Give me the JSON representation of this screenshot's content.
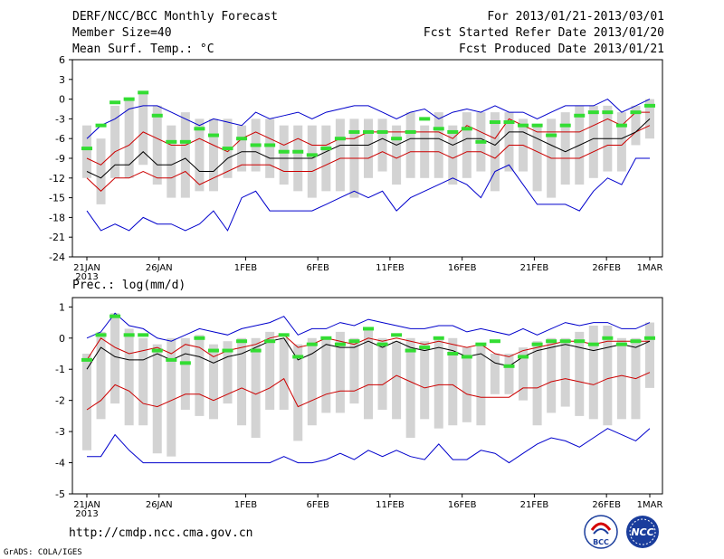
{
  "header": {
    "title": "DERF/NCC/BCC Monthly Forecast",
    "member_size": "Member Size=40",
    "variable": "Mean Surf. Temp.: °C",
    "for_period": "For 2013/01/21-2013/03/01",
    "fcst_started": "Fcst Started Refer Date 2013/01/20",
    "fcst_produced": "Fcst Produced Date 2013/01/21"
  },
  "footer": {
    "url": "http://cmdp.ncc.cma.gov.cn",
    "credit": "GrADS: COLA/IGES",
    "logo_left_text": "BCC",
    "logo_right_text": "NCC"
  },
  "colors": {
    "envelope": "#0000cc",
    "spread": "#cc0000",
    "mean": "#000000",
    "obs": "#33dd33",
    "box": "#d3d3d3"
  },
  "chart_data": [
    {
      "type": "box-ensemble",
      "title": "Mean Surf. Temp.: °C",
      "ylabel": "°C",
      "ylim": [
        -24,
        6
      ],
      "yticks": [
        6,
        3,
        0,
        -3,
        -6,
        -9,
        -12,
        -15,
        -18,
        -21,
        -24
      ],
      "xlim": [
        0,
        39
      ],
      "xticks": [
        {
          "day": 0,
          "label": "21JAN",
          "sub": "2013"
        },
        {
          "day": 5,
          "label": "26JAN"
        },
        {
          "day": 11,
          "label": "1FEB"
        },
        {
          "day": 16,
          "label": "6FEB"
        },
        {
          "day": 21,
          "label": "11FEB"
        },
        {
          "day": 26,
          "label": "16FEB"
        },
        {
          "day": 31,
          "label": "21FEB"
        },
        {
          "day": 36,
          "label": "26FEB"
        },
        {
          "day": 39,
          "label": "1MAR"
        }
      ],
      "series": {
        "max": [
          -6,
          -4,
          -3,
          -1.5,
          -1,
          -1,
          -2,
          -3,
          -4,
          -3,
          -3.5,
          -4,
          -2,
          -3,
          -2.5,
          -2,
          -3,
          -2,
          -1.5,
          -1,
          -1,
          -2,
          -3,
          -2,
          -1.5,
          -3,
          -2,
          -1.5,
          -2,
          -1,
          -2,
          -2,
          -3,
          -2,
          -1,
          -1,
          -1,
          0,
          -2,
          -1,
          0
        ],
        "upper": [
          -9,
          -10,
          -8,
          -7,
          -5,
          -6,
          -7,
          -7,
          -6,
          -7,
          -8,
          -6,
          -5,
          -6,
          -7,
          -6,
          -7,
          -7,
          -6,
          -6,
          -5,
          -5,
          -5,
          -5,
          -5,
          -5,
          -6,
          -4,
          -5,
          -6,
          -3,
          -4,
          -5,
          -5,
          -5,
          -5,
          -4,
          -3,
          -4,
          -2,
          -2
        ],
        "mean": [
          -11,
          -12,
          -10,
          -10,
          -8,
          -10,
          -10,
          -9,
          -11,
          -11,
          -9,
          -8,
          -8,
          -9,
          -9,
          -9,
          -9,
          -8,
          -7,
          -7,
          -7,
          -6,
          -7,
          -6,
          -6,
          -6,
          -7,
          -6,
          -6,
          -7,
          -5,
          -5,
          -6,
          -7,
          -8,
          -7,
          -6,
          -6,
          -6,
          -5,
          -3
        ],
        "lower": [
          -12,
          -14,
          -12,
          -12,
          -11,
          -12,
          -12,
          -11,
          -13,
          -12,
          -11,
          -10,
          -10,
          -10,
          -11,
          -11,
          -11,
          -10,
          -9,
          -9,
          -9,
          -8,
          -9,
          -8,
          -8,
          -8,
          -9,
          -8,
          -8,
          -9,
          -7,
          -7,
          -8,
          -9,
          -9,
          -9,
          -8,
          -7,
          -7,
          -5,
          -4
        ],
        "min": [
          -17,
          -20,
          -19,
          -20,
          -18,
          -19,
          -19,
          -20,
          -19,
          -17,
          -20,
          -15,
          -14,
          -17,
          -17,
          -17,
          -17,
          -16,
          -15,
          -14,
          -15,
          -14,
          -17,
          -15,
          -14,
          -13,
          -12,
          -13,
          -15,
          -11,
          -10,
          -13,
          -16,
          -16,
          -16,
          -17,
          -14,
          -12,
          -13,
          -9,
          -9
        ],
        "box_top": [
          -4,
          -6,
          -1,
          0,
          1,
          -1,
          -4,
          -2,
          -3,
          -3,
          -3,
          -4,
          -3,
          -3,
          -4,
          -4,
          -4,
          -4,
          -3,
          -3,
          -3,
          -3,
          -4,
          -2,
          -4,
          -2,
          -4,
          -2,
          -2,
          -2,
          -2,
          -3,
          -4,
          -3,
          -2,
          -1,
          -1,
          -1,
          -2,
          -1,
          0
        ],
        "box_bottom": [
          -12,
          -16,
          -12,
          -12,
          -10,
          -13,
          -15,
          -15,
          -14,
          -14,
          -12,
          -11,
          -11,
          -12,
          -13,
          -14,
          -15,
          -14,
          -14,
          -15,
          -12,
          -11,
          -13,
          -12,
          -12,
          -12,
          -13,
          -12,
          -11,
          -14,
          -11,
          -11,
          -14,
          -15,
          -13,
          -13,
          -12,
          -11,
          -11,
          -7,
          -6
        ],
        "obs": [
          -7.5,
          -4,
          -0.5,
          0,
          1,
          -2.5,
          -6.5,
          -6.5,
          -4.5,
          -5.5,
          -7.5,
          -6,
          -7,
          -7,
          -8,
          -8,
          -8.5,
          -7.5,
          -6,
          -5,
          -5,
          -5,
          -6,
          -5,
          -3,
          -4.5,
          -5,
          -4.5,
          -6.5,
          -3.5,
          -3.5,
          -4,
          -4,
          -5.5,
          -4,
          -2.5,
          -2,
          -2,
          -4,
          -2,
          -1
        ]
      }
    },
    {
      "type": "box-ensemble",
      "title": "Prec.: log(mm/d)",
      "ylabel": "log(mm/d)",
      "ylim": [
        -5,
        1.3
      ],
      "yticks": [
        1,
        0,
        -1,
        -2,
        -3,
        -4,
        -5
      ],
      "xlim": [
        0,
        39
      ],
      "xticks": [
        {
          "day": 0,
          "label": "21JAN",
          "sub": "2013"
        },
        {
          "day": 5,
          "label": "26JAN"
        },
        {
          "day": 11,
          "label": "1FEB"
        },
        {
          "day": 16,
          "label": "6FEB"
        },
        {
          "day": 21,
          "label": "11FEB"
        },
        {
          "day": 26,
          "label": "16FEB"
        },
        {
          "day": 31,
          "label": "21FEB"
        },
        {
          "day": 36,
          "label": "26FEB"
        },
        {
          "day": 39,
          "label": "1MAR"
        }
      ],
      "series": {
        "max": [
          0,
          0.2,
          0.8,
          0.4,
          0.3,
          0,
          -0.1,
          0.1,
          0.3,
          0.2,
          0.1,
          0.3,
          0.4,
          0.5,
          0.7,
          0.1,
          0.3,
          0.3,
          0.5,
          0.4,
          0.6,
          0.5,
          0.4,
          0.3,
          0.3,
          0.4,
          0.4,
          0.2,
          0.3,
          0.2,
          0.1,
          0.3,
          0.1,
          0.3,
          0.5,
          0.4,
          0.5,
          0.5,
          0.3,
          0.3,
          0.5
        ],
        "upper": [
          -0.7,
          0,
          -0.3,
          -0.5,
          -0.4,
          -0.3,
          -0.5,
          -0.2,
          -0.3,
          -0.6,
          -0.4,
          -0.3,
          -0.2,
          0,
          0.1,
          -0.3,
          -0.2,
          0,
          -0.1,
          -0.2,
          0,
          -0.1,
          0,
          -0.1,
          -0.2,
          -0.1,
          -0.2,
          -0.3,
          -0.2,
          -0.5,
          -0.6,
          -0.4,
          -0.3,
          -0.2,
          -0.1,
          -0.1,
          -0.2,
          -0.1,
          -0.1,
          -0.1,
          -0.1
        ],
        "mean": [
          -1,
          -0.3,
          -0.6,
          -0.7,
          -0.7,
          -0.5,
          -0.7,
          -0.5,
          -0.6,
          -0.8,
          -0.6,
          -0.5,
          -0.3,
          -0.1,
          0,
          -0.7,
          -0.5,
          -0.2,
          -0.3,
          -0.3,
          -0.1,
          -0.3,
          -0.1,
          -0.3,
          -0.4,
          -0.3,
          -0.4,
          -0.6,
          -0.5,
          -0.8,
          -0.9,
          -0.6,
          -0.4,
          -0.3,
          -0.2,
          -0.3,
          -0.4,
          -0.3,
          -0.2,
          -0.3,
          -0.1
        ],
        "lower": [
          -2.3,
          -2,
          -1.5,
          -1.7,
          -2.1,
          -2.2,
          -2,
          -1.8,
          -1.8,
          -2,
          -1.8,
          -1.6,
          -1.8,
          -1.6,
          -1.3,
          -2.2,
          -2,
          -1.8,
          -1.7,
          -1.7,
          -1.5,
          -1.5,
          -1.2,
          -1.4,
          -1.6,
          -1.5,
          -1.5,
          -1.8,
          -1.9,
          -1.9,
          -1.9,
          -1.6,
          -1.6,
          -1.4,
          -1.3,
          -1.4,
          -1.5,
          -1.3,
          -1.2,
          -1.3,
          -1.1
        ],
        "min": [
          -3.8,
          -3.8,
          -3.1,
          -3.6,
          -4,
          -4,
          -4,
          -4,
          -4,
          -4,
          -4,
          -4,
          -4,
          -4,
          -3.8,
          -4,
          -4,
          -3.9,
          -3.7,
          -3.9,
          -3.6,
          -3.8,
          -3.6,
          -3.8,
          -3.9,
          -3.4,
          -3.9,
          -3.9,
          -3.6,
          -3.7,
          -4,
          -3.7,
          -3.4,
          -3.2,
          -3.3,
          -3.5,
          -3.2,
          -2.9,
          -3.1,
          -3.3,
          -2.9
        ],
        "box_top": [
          -0.5,
          0.2,
          0.8,
          0.3,
          0,
          -0.2,
          0,
          0,
          0.1,
          -0.2,
          -0.1,
          0,
          0,
          0.2,
          0,
          -0.2,
          0,
          0,
          0.2,
          0,
          0.3,
          0,
          -0.1,
          0,
          -0.1,
          0,
          0,
          -0.3,
          -0.2,
          -0.5,
          -0.5,
          -0.3,
          -0.1,
          0,
          0,
          0.2,
          0.4,
          0.4,
          0,
          0,
          0.5
        ],
        "box_bottom": [
          -3.6,
          -2.6,
          -2.1,
          -2.8,
          -2.8,
          -3.7,
          -3.8,
          -2.3,
          -2.5,
          -2.6,
          -2.1,
          -2.8,
          -3.2,
          -2.3,
          -2.3,
          -3.3,
          -2.8,
          -2.4,
          -2.4,
          -2.1,
          -2.6,
          -2.3,
          -2.6,
          -3.2,
          -2.6,
          -2.9,
          -2.8,
          -2.7,
          -2.8,
          -1.8,
          -1.8,
          -2,
          -2.8,
          -2.4,
          -2.2,
          -2.5,
          -2.6,
          -2.8,
          -2.6,
          -2.6,
          -1.6
        ],
        "obs": [
          -0.7,
          0.1,
          0.7,
          0.1,
          0.1,
          -0.4,
          -0.7,
          -0.8,
          0,
          -0.4,
          -0.4,
          -0.1,
          -0.4,
          -0.1,
          0.1,
          -0.6,
          -0.2,
          0,
          -0.2,
          -0.1,
          0.3,
          -0.2,
          0.1,
          -0.4,
          -0.3,
          0,
          -0.5,
          -0.6,
          -0.2,
          -0.1,
          -0.9,
          -0.6,
          -0.2,
          -0.1,
          -0.1,
          -0.1,
          -0.2,
          0,
          -0.2,
          -0.1,
          0
        ]
      }
    }
  ]
}
